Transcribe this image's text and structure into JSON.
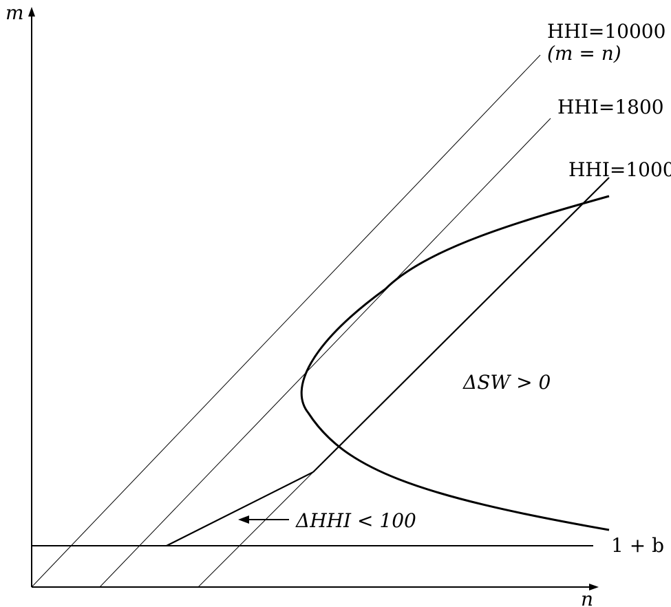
{
  "axes": {
    "x_label": "n",
    "y_label": "m"
  },
  "lines": {
    "hhi_10000": {
      "label": "HHI=10000",
      "sublabel": "(m = n)"
    },
    "hhi_1800": {
      "label": "HHI=1800"
    },
    "hhi_1000": {
      "label": "HHI=1000"
    },
    "baseline": {
      "label": "1 + b"
    }
  },
  "regions": {
    "delta_sw": "ΔSW > 0",
    "delta_hhi": "ΔHHI < 100"
  },
  "colors": {
    "ink": "#000000",
    "background": "#ffffff"
  }
}
